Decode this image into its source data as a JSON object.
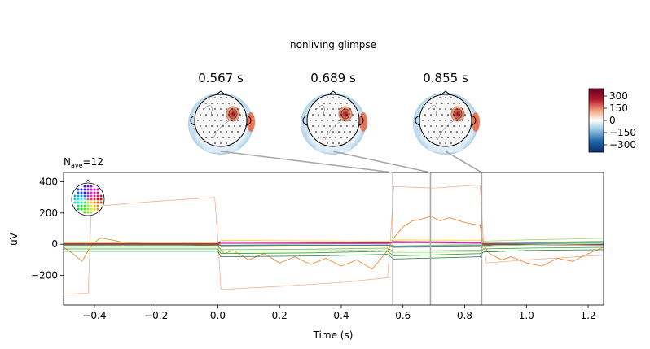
{
  "chart_data": {
    "type": "line",
    "title": "nonliving glimpse",
    "nave_label": "N",
    "nave_sub": "ave",
    "nave_value": "=12",
    "xlabel": "Time (s)",
    "ylabel": "uV",
    "xlim": [
      -0.5,
      1.25
    ],
    "ylim": [
      -390,
      460
    ],
    "xticks": [
      -0.4,
      -0.2,
      0.0,
      0.2,
      0.4,
      0.6,
      0.8,
      1.0,
      1.2
    ],
    "xtick_labels": [
      "−0.4",
      "−0.2",
      "0.0",
      "0.2",
      "0.4",
      "0.6",
      "0.8",
      "1.0",
      "1.2"
    ],
    "yticks": [
      -200,
      0,
      200,
      400
    ],
    "ytick_labels": [
      "−200",
      "0",
      "200",
      "400"
    ],
    "topomap_times": [
      0.567,
      0.689,
      0.855
    ],
    "topomap_labels": [
      "0.567 s",
      "0.689 s",
      "0.855 s"
    ],
    "colorbar": {
      "ticks": [
        300,
        150,
        0,
        -150,
        -300
      ],
      "tick_labels": [
        "300",
        "150",
        "0",
        "−150",
        "−300"
      ],
      "range": [
        -390,
        390
      ],
      "cmap": [
        "#08306b",
        "#2166ac",
        "#92c5de",
        "#ffffff",
        "#f4a582",
        "#b2182b",
        "#67001f"
      ]
    },
    "grid": false,
    "series": [
      {
        "color": "#f4a582",
        "x": [
          -0.5,
          -0.42,
          -0.41,
          -0.3,
          -0.2,
          -0.01,
          0.0,
          0.01,
          0.2,
          0.4,
          0.55,
          0.56,
          0.57,
          0.7,
          0.85,
          0.86,
          0.87,
          1.0,
          1.25
        ],
        "y": [
          -320,
          -315,
          240,
          260,
          275,
          300,
          40,
          -290,
          -270,
          -245,
          -215,
          60,
          370,
          360,
          380,
          40,
          -120,
          -100,
          -70
        ]
      },
      {
        "color": "#f57c20",
        "x": [
          -0.5,
          -0.47,
          -0.44,
          -0.42,
          -0.4,
          -0.38,
          -0.35,
          -0.3,
          -0.2,
          -0.1,
          0.0,
          0.02,
          0.05,
          0.1,
          0.15,
          0.2,
          0.25,
          0.3,
          0.35,
          0.4,
          0.45,
          0.5,
          0.55,
          0.57,
          0.6,
          0.63,
          0.66,
          0.69,
          0.72,
          0.75,
          0.8,
          0.85,
          0.86,
          0.88,
          0.92,
          0.95,
          1.0,
          1.05,
          1.1,
          1.15,
          1.2,
          1.25
        ],
        "y": [
          -20,
          -60,
          -110,
          -40,
          10,
          40,
          30,
          10,
          0,
          -5,
          -10,
          -60,
          -40,
          -100,
          -60,
          -120,
          -80,
          -130,
          -90,
          -140,
          -100,
          -160,
          -40,
          40,
          110,
          150,
          160,
          180,
          150,
          170,
          140,
          120,
          0,
          -60,
          -100,
          -80,
          -120,
          -140,
          -90,
          -110,
          -60,
          -20
        ]
      },
      {
        "color": "#33a02c",
        "x": [
          -0.5,
          -0.2,
          0.0,
          0.01,
          0.3,
          0.55,
          0.57,
          0.85,
          0.86,
          1.0,
          1.25
        ],
        "y": [
          -30,
          -30,
          -30,
          -60,
          -55,
          -45,
          -75,
          -60,
          -30,
          -25,
          -20
        ]
      },
      {
        "color": "#1b7837",
        "x": [
          -0.5,
          -0.2,
          0.0,
          0.01,
          0.3,
          0.55,
          0.57,
          0.85,
          0.86,
          1.0,
          1.25
        ],
        "y": [
          -45,
          -45,
          -45,
          -80,
          -75,
          -65,
          -95,
          -80,
          -50,
          -40,
          -35
        ]
      },
      {
        "color": "#66bd63",
        "x": [
          -0.5,
          -0.2,
          0.0,
          0.01,
          0.3,
          0.55,
          0.57,
          0.85,
          0.86,
          1.0,
          1.25
        ],
        "y": [
          -10,
          -12,
          -12,
          -35,
          -32,
          -25,
          -45,
          -38,
          -10,
          10,
          20
        ]
      },
      {
        "color": "#a6d96a",
        "x": [
          -0.5,
          -0.2,
          0.0,
          0.01,
          0.3,
          0.55,
          0.57,
          0.85,
          0.86,
          1.0,
          1.25
        ],
        "y": [
          15,
          12,
          12,
          -5,
          0,
          5,
          -10,
          0,
          20,
          28,
          38
        ]
      },
      {
        "color": "#f9d423",
        "x": [
          -0.5,
          -0.2,
          0.0,
          0.01,
          0.3,
          0.55,
          0.57,
          0.85,
          0.86,
          1.0,
          1.25
        ],
        "y": [
          10,
          10,
          10,
          25,
          22,
          20,
          28,
          25,
          10,
          8,
          5
        ]
      },
      {
        "color": "#17becf",
        "x": [
          -0.5,
          -0.2,
          0.0,
          0.01,
          0.3,
          0.55,
          0.57,
          0.85,
          0.86,
          1.0,
          1.25
        ],
        "y": [
          5,
          5,
          5,
          -10,
          -8,
          -5,
          -15,
          -10,
          5,
          8,
          10
        ]
      },
      {
        "color": "#6a3d9a",
        "x": [
          -0.5,
          -0.2,
          0.0,
          0.01,
          0.3,
          0.55,
          0.57,
          0.85,
          0.86,
          1.0,
          1.25
        ],
        "y": [
          2,
          3,
          2,
          12,
          10,
          8,
          14,
          10,
          2,
          0,
          -2
        ]
      },
      {
        "color": "#e7298a",
        "x": [
          -0.5,
          -0.2,
          0.0,
          0.01,
          0.3,
          0.55,
          0.57,
          0.85,
          0.86,
          1.0,
          1.25
        ],
        "y": [
          0,
          0,
          0,
          6,
          5,
          5,
          10,
          6,
          0,
          -3,
          -5
        ]
      },
      {
        "color": "#c51b7d",
        "x": [
          -0.5,
          -0.2,
          0.0,
          0.01,
          0.3,
          0.55,
          0.57,
          0.85,
          0.86,
          1.0,
          1.25
        ],
        "y": [
          4,
          4,
          4,
          15,
          12,
          10,
          18,
          14,
          4,
          2,
          0
        ]
      },
      {
        "color": "#1f78b4",
        "x": [
          -0.5,
          -0.2,
          0.0,
          0.01,
          0.3,
          0.55,
          0.57,
          0.85,
          0.86,
          1.0,
          1.25
        ],
        "y": [
          -2,
          -2,
          -2,
          -8,
          -6,
          -5,
          -12,
          -8,
          -2,
          -1,
          0
        ]
      },
      {
        "color": "#8c510a",
        "x": [
          -0.5,
          -0.2,
          0.0,
          0.01,
          0.3,
          0.55,
          0.57,
          0.85,
          0.86,
          1.0,
          1.25
        ],
        "y": [
          -5,
          -5,
          -5,
          -15,
          -12,
          -10,
          -20,
          -15,
          -5,
          -3,
          -2
        ]
      },
      {
        "color": "#b8e186",
        "x": [
          -0.5,
          -0.2,
          0.0,
          0.01,
          0.3,
          0.55,
          0.57,
          0.85,
          0.86,
          1.0,
          1.25
        ],
        "y": [
          -20,
          -20,
          -20,
          -45,
          -42,
          -35,
          -55,
          -48,
          -18,
          -5,
          5
        ]
      }
    ]
  }
}
